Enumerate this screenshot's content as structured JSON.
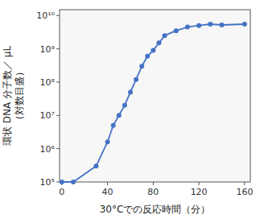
{
  "chart_data": {
    "type": "line",
    "x": [
      0,
      10,
      30,
      40,
      45,
      50,
      55,
      60,
      65,
      70,
      75,
      80,
      85,
      90,
      100,
      110,
      120,
      130,
      140,
      160
    ],
    "values": [
      100000.0,
      100000.0,
      300000.0,
      1600000.0,
      5000000.0,
      10000000.0,
      20000000.0,
      50000000.0,
      120000000.0,
      300000000.0,
      600000000.0,
      900000000.0,
      1500000000.0,
      2500000000.0,
      3500000000.0,
      4500000000.0,
      5000000000.0,
      5500000000.0,
      5200000000.0,
      5500000000.0
    ],
    "color": "#4472C4",
    "marker": "circle",
    "xlabel": "30°Cでの反応時間（分）",
    "ylabel": [
      "環状 DNA 分子数／ μL",
      "（対数目盛）"
    ],
    "xlim": [
      -2,
      165
    ],
    "ylim": [
      100000.0,
      15000000000.0
    ],
    "xticks": [
      0,
      40,
      80,
      120,
      160
    ],
    "yticks": [
      {
        "value": 100000.0,
        "label": "10⁵"
      },
      {
        "value": 1000000.0,
        "label": "10⁶"
      },
      {
        "value": 10000000.0,
        "label": "10⁷"
      },
      {
        "value": 100000000.0,
        "label": "10⁸"
      },
      {
        "value": 1000000000.0,
        "label": "10⁹"
      },
      {
        "value": 10000000000.0,
        "label": "10¹⁰"
      }
    ],
    "log": "y",
    "grid": false
  }
}
